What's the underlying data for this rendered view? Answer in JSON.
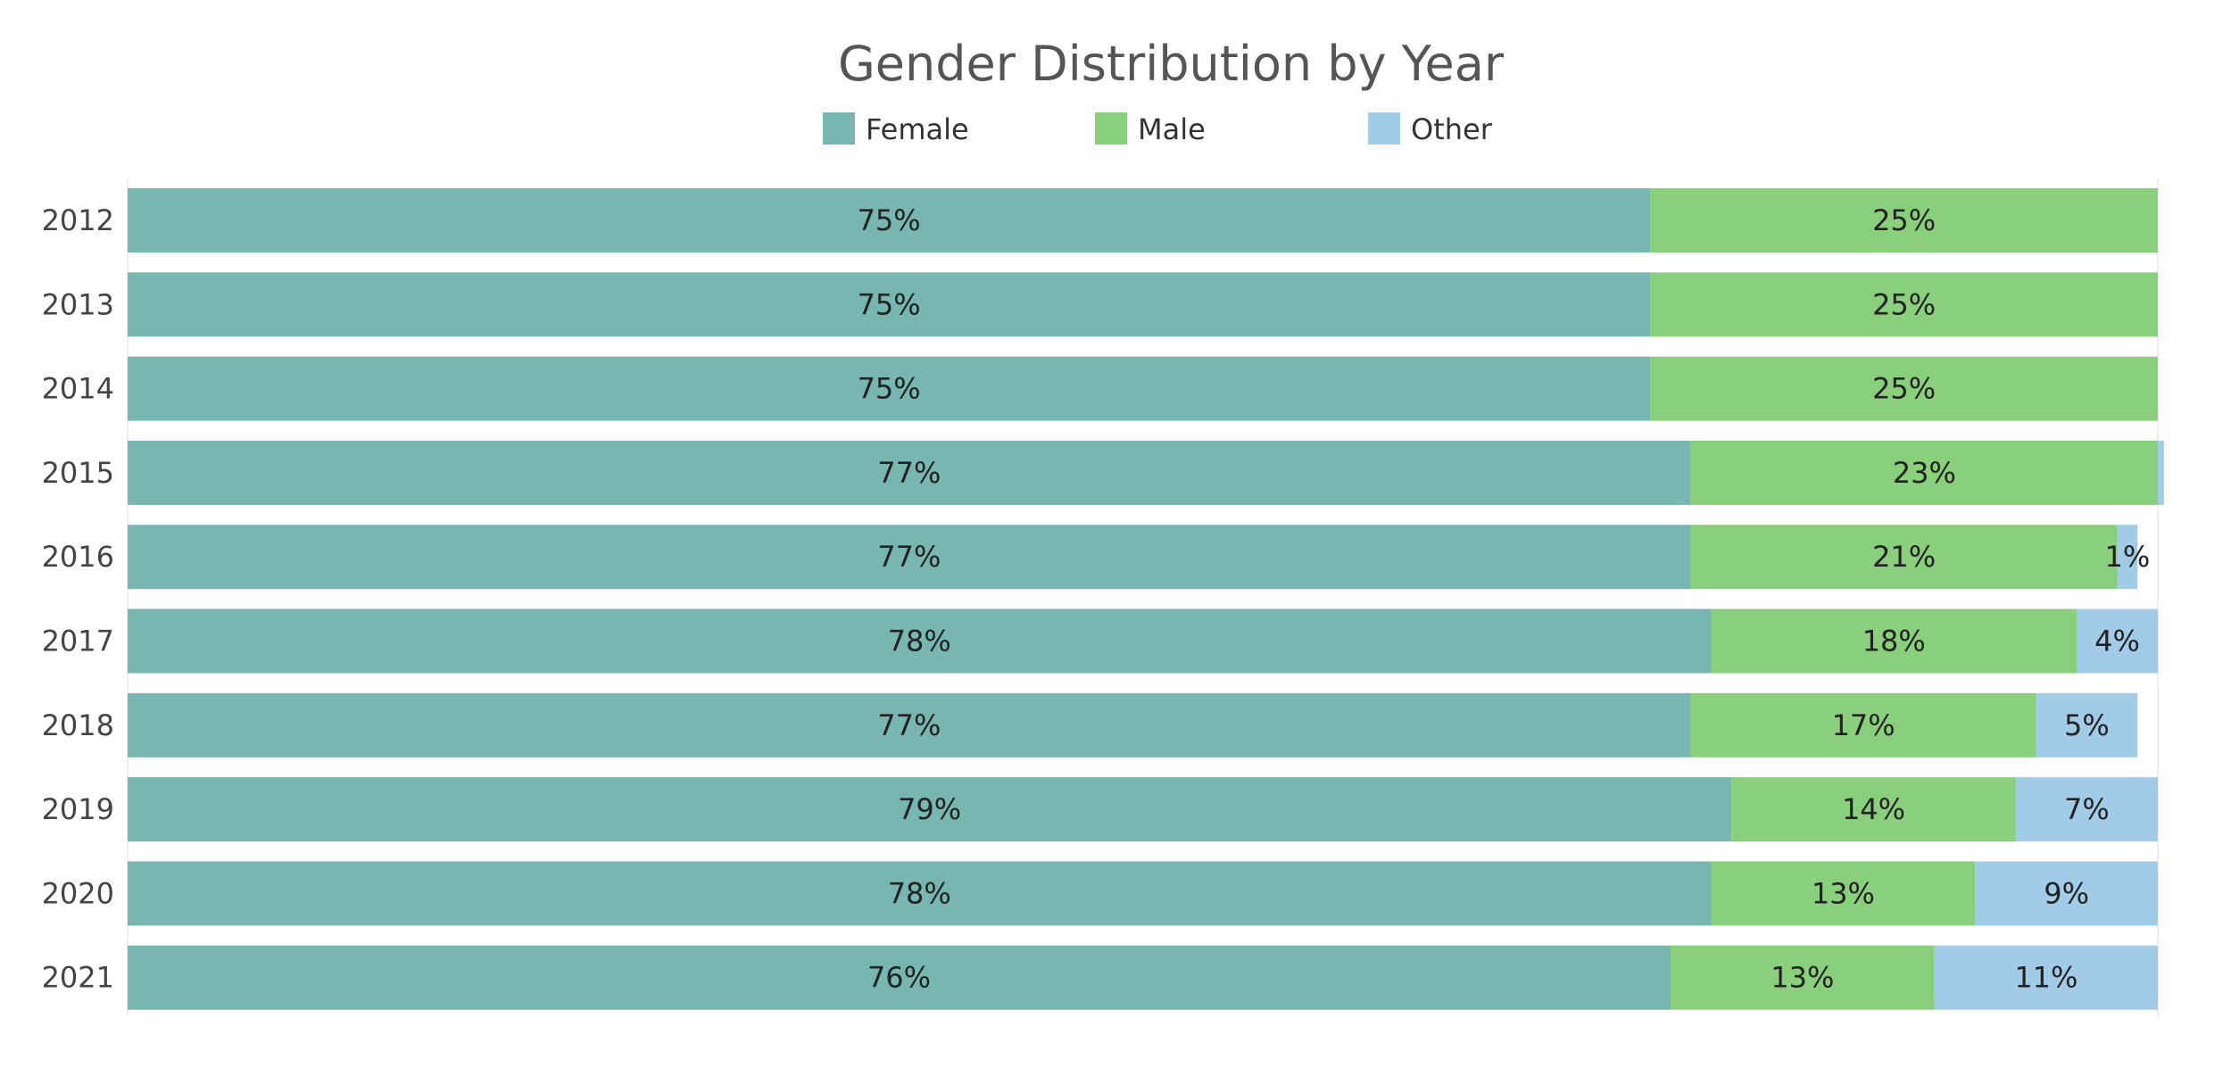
{
  "chart_data": {
    "type": "bar",
    "orientation": "horizontal",
    "stacked": true,
    "title": "Gender Distribution by Year",
    "xlabel": "",
    "ylabel": "",
    "xlim": [
      0,
      100
    ],
    "grid": false,
    "legend_position": "top",
    "categories": [
      "2012",
      "2013",
      "2014",
      "2015",
      "2016",
      "2017",
      "2018",
      "2019",
      "2020",
      "2021"
    ],
    "series": [
      {
        "name": "Female",
        "color": "#78b6b1",
        "values": [
          75,
          75,
          75,
          77,
          77,
          78,
          77,
          79,
          78,
          76
        ],
        "labels": [
          "75%",
          "75%",
          "75%",
          "77%",
          "77%",
          "78%",
          "77%",
          "79%",
          "78%",
          "76%"
        ]
      },
      {
        "name": "Male",
        "color": "#8ad07c",
        "values": [
          25,
          25,
          25,
          23,
          21,
          18,
          17,
          14,
          13,
          13
        ],
        "labels": [
          "25%",
          "25%",
          "25%",
          "23%",
          "21%",
          "18%",
          "17%",
          "14%",
          "13%",
          "13%"
        ]
      },
      {
        "name": "Other",
        "color": "#a2cbe8",
        "values": [
          0,
          0,
          0,
          0.3,
          1,
          4,
          5,
          7,
          9,
          11
        ],
        "labels": [
          "",
          "",
          "",
          "",
          "1%",
          "4%",
          "5%",
          "7%",
          "9%",
          "11%"
        ]
      }
    ]
  }
}
